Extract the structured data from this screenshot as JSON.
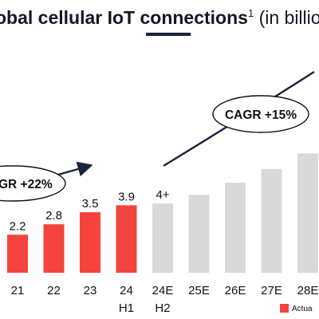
{
  "chart_data": {
    "type": "bar",
    "title": {
      "prefix": "obal cellular IoT connections",
      "superscript": "1",
      "suffix": " (in billio"
    },
    "categories": [
      "21",
      "22",
      "23",
      "24",
      "24E",
      "25E",
      "26E",
      "27E",
      "28E"
    ],
    "subcategories": [
      "",
      "",
      "",
      "H1",
      "H2",
      "",
      "",
      "",
      ""
    ],
    "values": [
      2.2,
      2.8,
      3.5,
      3.9,
      4.0,
      4.5,
      5.2,
      6.0,
      6.9
    ],
    "value_labels": [
      "2.2",
      "2.8",
      "3.5",
      "3.9",
      "4+",
      "",
      "",
      "",
      ""
    ],
    "bar_kind": [
      "actual",
      "actual",
      "actual",
      "actual",
      "estimate",
      "estimate",
      "estimate",
      "estimate",
      "estimate"
    ],
    "colors": {
      "actual": "#f5433d",
      "estimate": "#d9d9d9",
      "title_underline": "#17243a"
    },
    "annotations": [
      {
        "text": "GR +22%",
        "kind": "cagr"
      },
      {
        "text": "CAGR +15%",
        "kind": "cagr"
      }
    ],
    "legend": [
      {
        "label": "Actua",
        "kind": "actual"
      }
    ],
    "xlabel": "",
    "ylabel": "",
    "ylim": [
      0,
      7.5
    ],
    "grid": false,
    "legend_position": "bottom-right"
  }
}
